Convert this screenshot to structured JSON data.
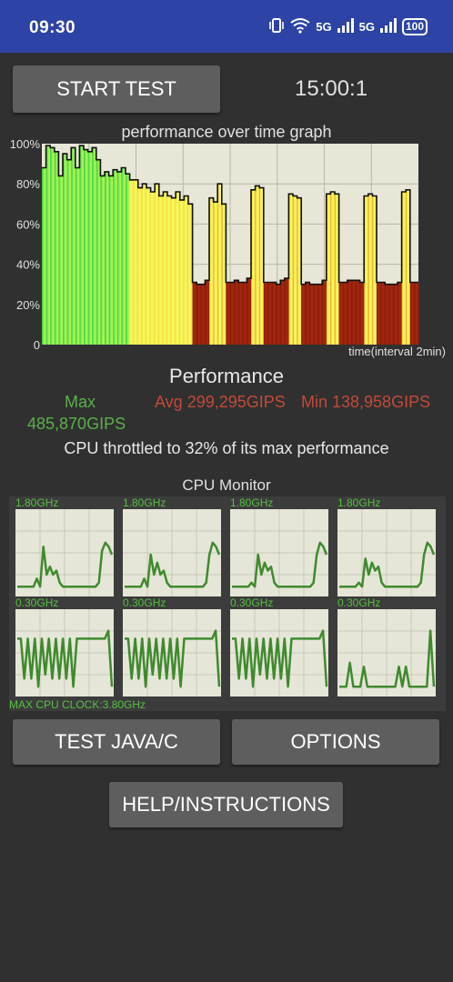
{
  "status_bar": {
    "time": "09:30",
    "network_1": "5G",
    "network_2": "5G",
    "battery": "100",
    "icons": [
      "vibrate-icon",
      "wifi-icon",
      "signal-icon",
      "signal-icon",
      "battery-icon"
    ]
  },
  "controls": {
    "start_test_label": "START TEST",
    "timer": "15:00:1",
    "test_java_label": "TEST JAVA/C",
    "options_label": "OPTIONS",
    "help_label": "HELP/INSTRUCTIONS"
  },
  "graph": {
    "title": "performance over time graph",
    "y_ticks": [
      "100%",
      "80%",
      "60%",
      "40%",
      "20%",
      "0"
    ],
    "x_caption": "time(interval 2min)"
  },
  "chart_data": {
    "type": "area",
    "title": "performance over time graph",
    "xlabel": "time(interval 2min)",
    "ylabel": "",
    "ylim": [
      0,
      100
    ],
    "grid": true,
    "x": [
      0,
      1,
      2,
      3,
      4,
      5,
      6,
      7,
      8,
      9,
      10,
      11,
      12,
      13,
      14,
      15,
      16,
      17,
      18,
      19,
      20,
      21,
      22,
      23,
      24,
      25,
      26,
      27,
      28,
      29,
      30,
      31,
      32,
      33,
      34,
      35,
      36,
      37,
      38,
      39,
      40,
      41,
      42,
      43,
      44,
      45,
      46,
      47,
      48,
      49,
      50,
      51,
      52,
      53,
      54,
      55,
      56,
      57,
      58,
      59,
      60,
      61,
      62,
      63,
      64,
      65,
      66,
      67,
      68,
      69,
      70,
      71,
      72,
      73,
      74,
      75,
      76,
      77,
      78,
      79,
      80,
      81,
      82,
      83,
      84,
      85,
      86,
      87,
      88,
      89
    ],
    "series": [
      {
        "values": [
          88,
          99,
          98,
          96,
          84,
          95,
          92,
          98,
          88,
          99,
          97,
          96,
          98,
          92,
          84,
          86,
          84,
          87,
          86,
          88,
          85,
          82,
          82,
          78,
          80,
          78,
          76,
          80,
          74,
          76,
          74,
          73,
          76,
          72,
          74,
          70,
          31,
          30,
          30,
          32,
          73,
          71,
          80,
          70,
          31,
          31,
          32,
          31,
          31,
          33,
          77,
          79,
          78,
          31,
          31,
          31,
          30,
          32,
          33,
          75,
          74,
          73,
          30,
          31,
          30,
          30,
          30,
          32,
          75,
          76,
          75,
          31,
          31,
          32,
          32,
          32,
          31,
          74,
          75,
          74,
          31,
          31,
          30,
          30,
          30,
          31,
          76,
          77,
          31,
          31
        ]
      }
    ],
    "color_scale": [
      "green (high)",
      "yellow",
      "dark red (throttled)"
    ]
  },
  "results": {
    "heading": "Performance",
    "max_label": "Max",
    "max_value": "485,870GIPS",
    "avg_value": "Avg 299,295GIPS",
    "min_value": "Min 138,958GIPS",
    "throttle_text": "CPU throttled to 32% of its max performance"
  },
  "cpu_monitor": {
    "title": "CPU Monitor",
    "max_clock": "MAX CPU CLOCK:3.80GHz",
    "cores": [
      {
        "label": "1.80GHz",
        "values": [
          0.1,
          0.1,
          0.1,
          0.1,
          0.1,
          0.1,
          0.2,
          0.1,
          0.6,
          0.25,
          0.35,
          0.25,
          0.3,
          0.15,
          0.1,
          0.1,
          0.1,
          0.1,
          0.1,
          0.1,
          0.1,
          0.1,
          0.1,
          0.1,
          0.1,
          0.15,
          0.55,
          0.65,
          0.6,
          0.5
        ]
      },
      {
        "label": "1.80GHz",
        "values": [
          0.1,
          0.1,
          0.1,
          0.1,
          0.1,
          0.1,
          0.2,
          0.1,
          0.5,
          0.25,
          0.4,
          0.25,
          0.3,
          0.15,
          0.1,
          0.1,
          0.1,
          0.1,
          0.1,
          0.1,
          0.1,
          0.1,
          0.1,
          0.1,
          0.1,
          0.15,
          0.5,
          0.65,
          0.6,
          0.5
        ]
      },
      {
        "label": "1.80GHz",
        "values": [
          0.1,
          0.1,
          0.1,
          0.1,
          0.1,
          0.1,
          0.15,
          0.1,
          0.5,
          0.25,
          0.4,
          0.3,
          0.35,
          0.15,
          0.1,
          0.1,
          0.1,
          0.1,
          0.1,
          0.1,
          0.1,
          0.1,
          0.1,
          0.1,
          0.1,
          0.15,
          0.5,
          0.65,
          0.6,
          0.5
        ]
      },
      {
        "label": "1.80GHz",
        "values": [
          0.1,
          0.1,
          0.1,
          0.1,
          0.1,
          0.1,
          0.15,
          0.1,
          0.45,
          0.25,
          0.4,
          0.3,
          0.35,
          0.15,
          0.1,
          0.1,
          0.1,
          0.1,
          0.1,
          0.1,
          0.1,
          0.1,
          0.1,
          0.1,
          0.1,
          0.15,
          0.5,
          0.65,
          0.6,
          0.5
        ]
      },
      {
        "label": "0.30GHz",
        "values": [
          0.7,
          0.7,
          0.2,
          0.7,
          0.2,
          0.7,
          0.1,
          0.7,
          0.25,
          0.7,
          0.2,
          0.7,
          0.2,
          0.7,
          0.2,
          0.7,
          0.1,
          0.7,
          0.7,
          0.7,
          0.7,
          0.7,
          0.7,
          0.7,
          0.7,
          0.7,
          0.8,
          0.1
        ]
      },
      {
        "label": "0.30GHz",
        "values": [
          0.7,
          0.7,
          0.2,
          0.7,
          0.2,
          0.7,
          0.1,
          0.7,
          0.25,
          0.7,
          0.2,
          0.7,
          0.2,
          0.7,
          0.2,
          0.7,
          0.1,
          0.7,
          0.7,
          0.7,
          0.7,
          0.7,
          0.7,
          0.7,
          0.7,
          0.7,
          0.8,
          0.1
        ]
      },
      {
        "label": "0.30GHz",
        "values": [
          0.7,
          0.7,
          0.2,
          0.7,
          0.2,
          0.7,
          0.1,
          0.7,
          0.25,
          0.7,
          0.2,
          0.7,
          0.2,
          0.7,
          0.2,
          0.7,
          0.1,
          0.7,
          0.7,
          0.7,
          0.7,
          0.7,
          0.7,
          0.7,
          0.7,
          0.7,
          0.8,
          0.1
        ]
      },
      {
        "label": "0.30GHz",
        "values": [
          0.1,
          0.1,
          0.1,
          0.4,
          0.1,
          0.1,
          0.1,
          0.35,
          0.1,
          0.1,
          0.1,
          0.1,
          0.1,
          0.1,
          0.1,
          0.1,
          0.1,
          0.35,
          0.1,
          0.35,
          0.1,
          0.1,
          0.1,
          0.1,
          0.1,
          0.1,
          0.8,
          0.1
        ]
      }
    ]
  }
}
